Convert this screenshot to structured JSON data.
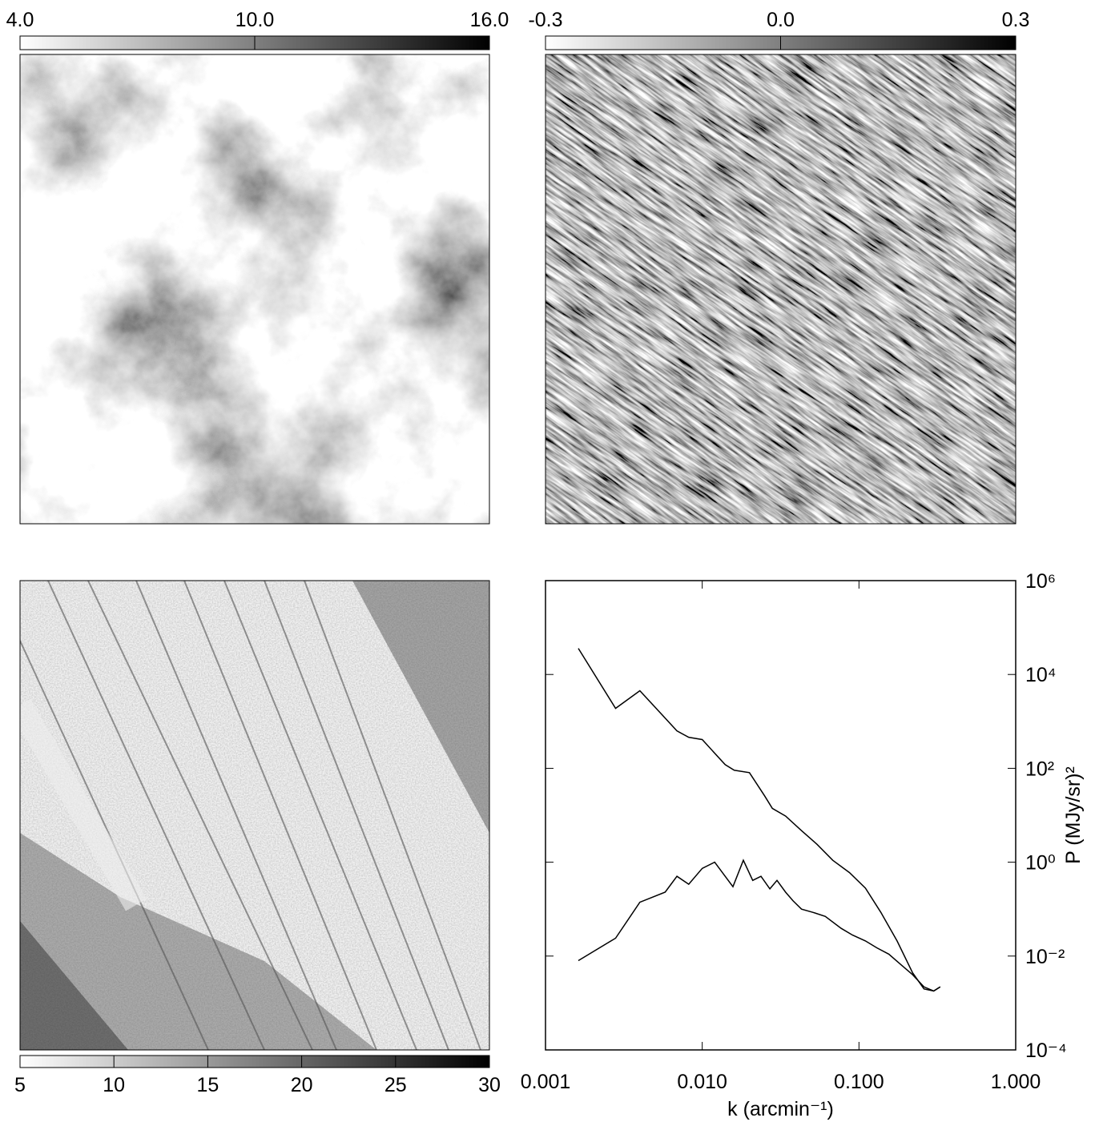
{
  "chart_data": [
    {
      "type": "image",
      "colorbar": "top",
      "clim": [
        4,
        16
      ],
      "cticks": [
        {
          "value": 4,
          "label": "4.0"
        },
        {
          "value": 10,
          "label": "10.0"
        },
        {
          "value": 16,
          "label": "16.0"
        }
      ]
    },
    {
      "type": "image",
      "colorbar": "top",
      "clim": [
        -0.3,
        0.3
      ],
      "cticks": [
        -0.3,
        {
          "value": 0,
          "label": "0.0"
        },
        0.3
      ]
    },
    {
      "type": "image",
      "colorbar": "bottom",
      "clim": [
        5,
        30
      ],
      "cticks": [
        5,
        10,
        15,
        20,
        25,
        30
      ]
    },
    {
      "type": "line",
      "xlabel": "k (arcmin⁻¹)",
      "ylabel": "P (MJy/sr)²",
      "xlog": true,
      "ylog": true,
      "yaxis_side": "right",
      "xlim": [
        0.001,
        1
      ],
      "ylim": [
        0.0001,
        1000000
      ],
      "xticks": [
        0.001,
        {
          "value": 0.01,
          "label": "0.010"
        },
        {
          "value": 0.1,
          "label": "0.100"
        },
        {
          "value": 1,
          "label": "1.000"
        }
      ],
      "yticks": [
        {
          "value": 0.0001,
          "label": "10⁻⁴"
        },
        {
          "value": 0.01,
          "label": "10⁻²"
        },
        {
          "value": 1,
          "label": "10⁰"
        },
        {
          "value": 100,
          "label": "10²"
        },
        {
          "value": 10000,
          "label": "10⁴"
        },
        {
          "value": 1000000,
          "label": "10⁶"
        }
      ],
      "series": [
        {
          "color": "#000000",
          "x": [
            0.00162,
            0.0028,
            0.004,
            0.0069,
            0.0082,
            0.01,
            0.014,
            0.016,
            0.02,
            0.025,
            0.028,
            0.034,
            0.043,
            0.054,
            0.068,
            0.087,
            0.11,
            0.138,
            0.175,
            0.22,
            0.26,
            0.3,
            0.33
          ],
          "values": [
            36000,
            1900,
            4500,
            630,
            460,
            410,
            120,
            91,
            81,
            26,
            14,
            9.6,
            4.7,
            2.4,
            1.1,
            0.6,
            0.28,
            0.085,
            0.021,
            0.0044,
            0.002,
            0.0018,
            0.0022
          ]
        },
        {
          "color": "#000000",
          "x": [
            0.00162,
            0.0028,
            0.004,
            0.0058,
            0.0069,
            0.0082,
            0.01,
            0.012,
            0.014,
            0.0157,
            0.0183,
            0.021,
            0.0237,
            0.027,
            0.03,
            0.034,
            0.038,
            0.043,
            0.051,
            0.061,
            0.077,
            0.091,
            0.11,
            0.13,
            0.155,
            0.185,
            0.22,
            0.26,
            0.3,
            0.33
          ],
          "values": [
            0.008,
            0.024,
            0.14,
            0.23,
            0.5,
            0.34,
            0.74,
            1.0,
            0.5,
            0.3,
            1.1,
            0.41,
            0.5,
            0.27,
            0.41,
            0.23,
            0.15,
            0.1,
            0.085,
            0.07,
            0.039,
            0.028,
            0.021,
            0.015,
            0.011,
            0.0066,
            0.004,
            0.0022,
            0.0018,
            0.0022
          ]
        }
      ]
    }
  ]
}
